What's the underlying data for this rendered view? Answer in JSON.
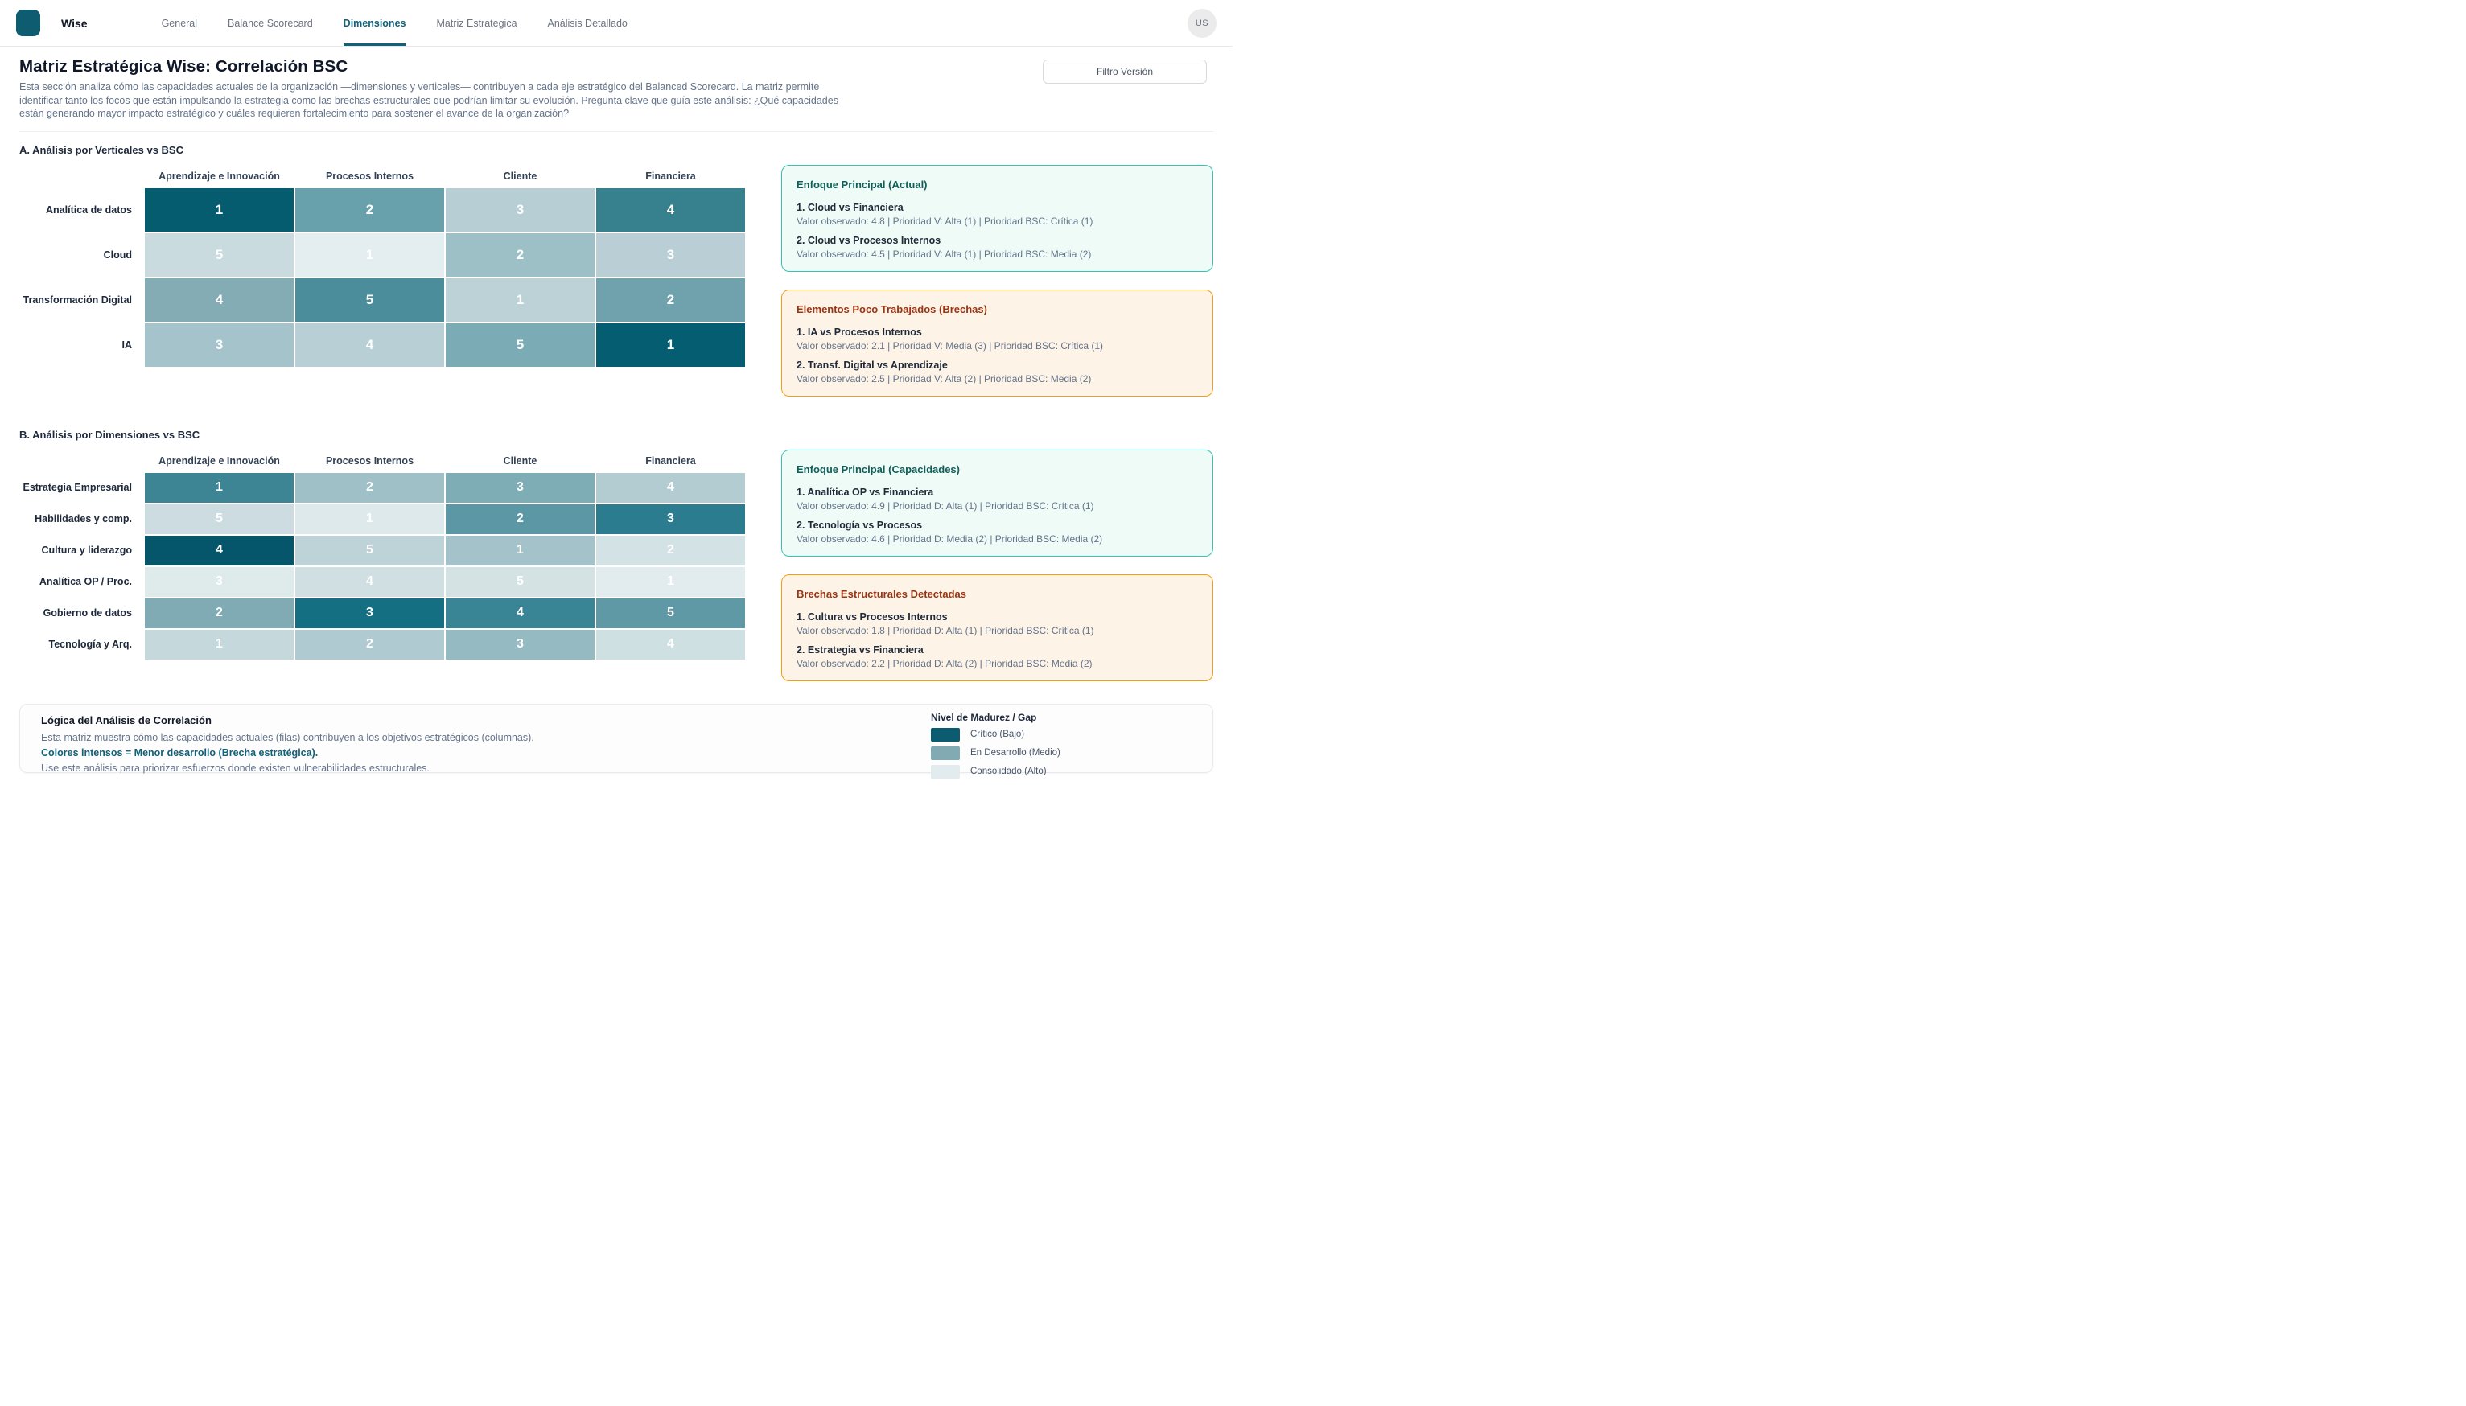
{
  "nav": {
    "brand": "Wise",
    "tabs": [
      {
        "label": "General",
        "active": false
      },
      {
        "label": "Balance Scorecard",
        "active": false
      },
      {
        "label": "Dimensiones",
        "active": true
      },
      {
        "label": "Matriz Estrategica",
        "active": false
      },
      {
        "label": "Análisis Detallado",
        "active": false
      }
    ],
    "avatar": "US"
  },
  "header": {
    "title": "Matriz Estratégica Wise: Correlación BSC",
    "description": "Esta sección analiza cómo las capacidades actuales de la organización —dimensiones y verticales— contribuyen a cada eje estratégico del Balanced Scorecard. La matriz permite identificar tanto los focos que están impulsando la estrategia como las brechas estructurales que podrían limitar su evolución. Pregunta clave que guía este análisis: ¿Qué capacidades están generando mayor impacto estratégico y cuáles requieren fortalecimiento para sostener el avance de la organización?",
    "filter_button": "Filtro Versión"
  },
  "matrix_a": {
    "section_title": "A. Análisis por Verticales vs BSC",
    "columns": [
      "Aprendizaje e Innovación",
      "Procesos Internos",
      "Cliente",
      "Financiera"
    ],
    "rows": [
      {
        "label": "Analítica de datos",
        "cells": [
          {
            "value": "1",
            "color": "#055c6e"
          },
          {
            "value": "2",
            "color": "#68a0ab"
          },
          {
            "value": "3",
            "color": "#b6ced4"
          },
          {
            "value": "4",
            "color": "#37808e"
          }
        ]
      },
      {
        "label": "Cloud",
        "cells": [
          {
            "value": "5",
            "color": "#c9dbdf"
          },
          {
            "value": "1",
            "color": "#e4edef"
          },
          {
            "value": "2",
            "color": "#9cc0c6"
          },
          {
            "value": "3",
            "color": "#b9cfd5"
          }
        ]
      },
      {
        "label": "Transformación Digital",
        "cells": [
          {
            "value": "4",
            "color": "#84acb5"
          },
          {
            "value": "5",
            "color": "#4b8d9b"
          },
          {
            "value": "1",
            "color": "#bdd2d7"
          },
          {
            "value": "2",
            "color": "#6fa2ad"
          }
        ]
      },
      {
        "label": "IA",
        "cells": [
          {
            "value": "3",
            "color": "#a5c3ca"
          },
          {
            "value": "4",
            "color": "#b8cfd5"
          },
          {
            "value": "5",
            "color": "#7babb5"
          },
          {
            "value": "1",
            "color": "#045d70"
          }
        ]
      }
    ]
  },
  "matrix_b": {
    "section_title": "B. Análisis por Dimensiones vs BSC",
    "columns": [
      "Aprendizaje e Innovación",
      "Procesos Internos",
      "Cliente",
      "Financiera"
    ],
    "rows": [
      {
        "label": "Estrategia Empresarial",
        "cells": [
          {
            "value": "1",
            "color": "#3d8595"
          },
          {
            "value": "2",
            "color": "#9fc0c7"
          },
          {
            "value": "3",
            "color": "#7fadb6"
          },
          {
            "value": "4",
            "color": "#b3ccd2"
          }
        ]
      },
      {
        "label": "Habilidades y comp.",
        "cells": [
          {
            "value": "5",
            "color": "#ccdce0"
          },
          {
            "value": "1",
            "color": "#dee9eb"
          },
          {
            "value": "2",
            "color": "#5b97a4"
          },
          {
            "value": "3",
            "color": "#2a7c8e"
          }
        ]
      },
      {
        "label": "Cultura y liderazgo",
        "cells": [
          {
            "value": "4",
            "color": "#06566b"
          },
          {
            "value": "5",
            "color": "#bdd3d8"
          },
          {
            "value": "1",
            "color": "#a3c2c9"
          },
          {
            "value": "2",
            "color": "#d3e2e5"
          }
        ]
      },
      {
        "label": "Analítica OP / Proc.",
        "cells": [
          {
            "value": "3",
            "color": "#dfeaeb"
          },
          {
            "value": "4",
            "color": "#cfdfe2"
          },
          {
            "value": "5",
            "color": "#d4e2e4"
          },
          {
            "value": "1",
            "color": "#e2ecee"
          }
        ]
      },
      {
        "label": "Gobierno de datos",
        "cells": [
          {
            "value": "2",
            "color": "#80aab4"
          },
          {
            "value": "3",
            "color": "#156f82"
          },
          {
            "value": "4",
            "color": "#3a8595"
          },
          {
            "value": "5",
            "color": "#5f99a6"
          }
        ]
      },
      {
        "label": "Tecnología y Arq.",
        "cells": [
          {
            "value": "1",
            "color": "#c5d8dc"
          },
          {
            "value": "2",
            "color": "#b0cad1"
          },
          {
            "value": "3",
            "color": "#95bac2"
          },
          {
            "value": "4",
            "color": "#cfe0e3"
          }
        ]
      }
    ]
  },
  "panels_a": [
    {
      "type": "teal",
      "title": "Enfoque Principal (Actual)",
      "items": [
        {
          "name": "1. Cloud vs Financiera",
          "detail": "Valor observado: 4.8 | Prioridad V: Alta (1) | Prioridad BSC: Crítica (1)"
        },
        {
          "name": "2. Cloud vs Procesos Internos",
          "detail": "Valor observado: 4.5 | Prioridad V: Alta (1) | Prioridad BSC: Media (2)"
        }
      ]
    },
    {
      "type": "orange",
      "title": "Elementos Poco Trabajados (Brechas)",
      "items": [
        {
          "name": "1. IA vs Procesos Internos",
          "detail": "Valor observado: 2.1 | Prioridad V: Media (3) | Prioridad BSC: Crítica (1)"
        },
        {
          "name": "2. Transf. Digital vs Aprendizaje",
          "detail": "Valor observado: 2.5 | Prioridad V: Alta (2) | Prioridad BSC: Media (2)"
        }
      ]
    }
  ],
  "panels_b": [
    {
      "type": "teal",
      "title": "Enfoque Principal (Capacidades)",
      "items": [
        {
          "name": "1. Analítica OP vs Financiera",
          "detail": "Valor observado: 4.9 | Prioridad D: Alta (1) | Prioridad BSC: Crítica (1)"
        },
        {
          "name": "2. Tecnología vs Procesos",
          "detail": "Valor observado: 4.6 | Prioridad D: Media (2) | Prioridad BSC: Media (2)"
        }
      ]
    },
    {
      "type": "orange",
      "title": "Brechas Estructurales Detectadas",
      "items": [
        {
          "name": "1. Cultura vs Procesos Internos",
          "detail": "Valor observado: 1.8 | Prioridad D: Alta (1) | Prioridad BSC: Crítica (1)"
        },
        {
          "name": "2. Estrategia vs Financiera",
          "detail": "Valor observado: 2.2 | Prioridad D: Alta (2) | Prioridad BSC: Media (2)"
        }
      ]
    }
  ],
  "footer": {
    "title": "Lógica del Análisis de Correlación",
    "line1": "Esta matriz muestra cómo las capacidades actuales (filas) contribuyen a los objetivos estratégicos (columnas).",
    "line2": "Colores intensos = Menor desarrollo (Brecha estratégica).",
    "line3": "Use este análisis para priorizar esfuerzos donde existen vulnerabilidades estructurales."
  },
  "legend": {
    "title": "Nivel de Madurez / Gap",
    "items": [
      {
        "label": "Crítico (Bajo)",
        "color": "#0b5c70"
      },
      {
        "label": "En Desarrollo (Medio)",
        "color": "#82aab3"
      },
      {
        "label": "Consolidado (Alto)",
        "color": "#e2ebed"
      }
    ]
  }
}
